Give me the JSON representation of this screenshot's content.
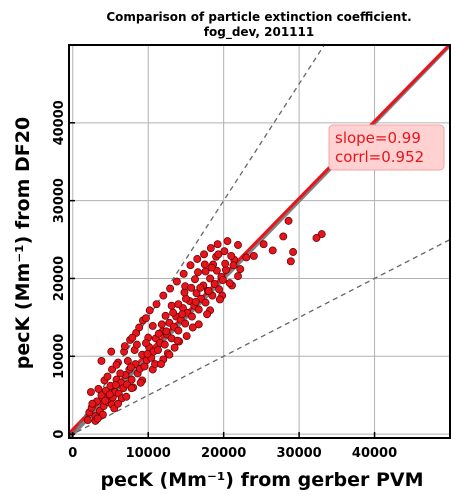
{
  "chart_data": {
    "type": "scatter",
    "title_lines": [
      "Comparison of particle extinction coefficient.",
      "fog_dev, 201111"
    ],
    "xlabel": "pecK (Mm⁻¹) from gerber PVM",
    "ylabel": "pecK (Mm⁻¹) from DF20",
    "xlim": [
      -500,
      50000
    ],
    "ylim": [
      -500,
      50000
    ],
    "grid": true,
    "x_ticks": [
      0,
      10000,
      20000,
      30000,
      40000
    ],
    "y_ticks": [
      0,
      10000,
      20000,
      30000,
      40000
    ],
    "x_tick_labels": [
      "0",
      "10000",
      "20000",
      "30000",
      "40000"
    ],
    "y_tick_labels": [
      "0",
      "10000",
      "20000",
      "30000",
      "40000"
    ],
    "annotation": {
      "lines": [
        "slope=0.99",
        "corrl=0.952"
      ],
      "placement": "upper-right"
    },
    "lines": [
      {
        "kind": "one-to-one",
        "slope": 1.0,
        "intercept": 0,
        "color": "#808080",
        "style": "solid"
      },
      {
        "kind": "fit",
        "slope": 0.99,
        "intercept": 600,
        "color": "#e8141c",
        "style": "solid"
      },
      {
        "kind": "bound-upper",
        "slope": 1.5,
        "intercept": 0,
        "color": "#666666",
        "style": "dashed"
      },
      {
        "kind": "bound-lower",
        "slope": 0.5,
        "intercept": 0,
        "color": "#666666",
        "style": "dashed"
      }
    ],
    "point_color": "#e8141c",
    "point_edge": "#5a0000",
    "series": [
      {
        "points": [
          [
            2200,
            2800
          ],
          [
            2500,
            3400
          ],
          [
            3000,
            2300
          ],
          [
            3200,
            4200
          ],
          [
            3600,
            3000
          ],
          [
            3800,
            5000
          ],
          [
            4100,
            3600
          ],
          [
            4400,
            5600
          ],
          [
            4700,
            4100
          ],
          [
            5000,
            6200
          ],
          [
            5300,
            4700
          ],
          [
            5600,
            5400
          ],
          [
            5800,
            7000
          ],
          [
            6100,
            5200
          ],
          [
            6400,
            6600
          ],
          [
            6700,
            5900
          ],
          [
            7000,
            7600
          ],
          [
            7200,
            6400
          ],
          [
            7500,
            8300
          ],
          [
            7800,
            7000
          ],
          [
            8000,
            6000
          ],
          [
            8300,
            9000
          ],
          [
            8600,
            7800
          ],
          [
            8900,
            8400
          ],
          [
            9200,
            10200
          ],
          [
            9500,
            8700
          ],
          [
            9800,
            9500
          ],
          [
            10100,
            11200
          ],
          [
            10400,
            9800
          ],
          [
            10700,
            10600
          ],
          [
            11000,
            12300
          ],
          [
            11300,
            10800
          ],
          [
            11600,
            11700
          ],
          [
            11900,
            13200
          ],
          [
            12200,
            11500
          ],
          [
            12500,
            12800
          ],
          [
            12800,
            14300
          ],
          [
            13100,
            12300
          ],
          [
            13400,
            13800
          ],
          [
            13700,
            15100
          ],
          [
            14000,
            13300
          ],
          [
            14300,
            14700
          ],
          [
            14600,
            16200
          ],
          [
            14900,
            14200
          ],
          [
            15200,
            15600
          ],
          [
            15500,
            17100
          ],
          [
            15800,
            15100
          ],
          [
            16100,
            16500
          ],
          [
            16400,
            18100
          ],
          [
            16700,
            16000
          ],
          [
            17000,
            17400
          ],
          [
            17300,
            19100
          ],
          [
            17600,
            16900
          ],
          [
            17900,
            18400
          ],
          [
            18200,
            20000
          ],
          [
            18500,
            17800
          ],
          [
            18800,
            19300
          ],
          [
            19100,
            21000
          ],
          [
            19400,
            18600
          ],
          [
            19700,
            20200
          ],
          [
            3400,
            5800
          ],
          [
            4200,
            6900
          ],
          [
            5200,
            8300
          ],
          [
            6000,
            9200
          ],
          [
            6800,
            10600
          ],
          [
            7600,
            12100
          ],
          [
            8400,
            13000
          ],
          [
            9300,
            14600
          ],
          [
            10200,
            15900
          ],
          [
            11100,
            16700
          ],
          [
            12000,
            17800
          ],
          [
            12900,
            18700
          ],
          [
            13800,
            19600
          ],
          [
            14700,
            20600
          ],
          [
            15600,
            21700
          ],
          [
            16500,
            22500
          ],
          [
            17400,
            23100
          ],
          [
            18300,
            23900
          ],
          [
            19200,
            24400
          ],
          [
            20100,
            23500
          ],
          [
            3000,
            1700
          ],
          [
            4000,
            2500
          ],
          [
            5200,
            3800
          ],
          [
            6500,
            4600
          ],
          [
            7800,
            5900
          ],
          [
            9200,
            6900
          ],
          [
            10600,
            8300
          ],
          [
            12000,
            9600
          ],
          [
            13500,
            11100
          ],
          [
            15100,
            12600
          ],
          [
            16700,
            14100
          ],
          [
            18200,
            15900
          ],
          [
            19800,
            17800
          ],
          [
            21100,
            19100
          ],
          [
            21900,
            20300
          ],
          [
            2600,
            3900
          ],
          [
            3300,
            2000
          ],
          [
            4900,
            5100
          ],
          [
            5500,
            3300
          ],
          [
            6300,
            7800
          ],
          [
            7100,
            4800
          ],
          [
            8200,
            10800
          ],
          [
            9000,
            6600
          ],
          [
            10000,
            12400
          ],
          [
            10900,
            9000
          ],
          [
            11800,
            14100
          ],
          [
            12600,
            10400
          ],
          [
            13300,
            15600
          ],
          [
            14100,
            11900
          ],
          [
            15000,
            17400
          ],
          [
            15900,
            13700
          ],
          [
            16900,
            18800
          ],
          [
            17800,
            15400
          ],
          [
            18600,
            21800
          ],
          [
            19500,
            17300
          ],
          [
            20300,
            21100
          ],
          [
            20800,
            19400
          ],
          [
            21400,
            22400
          ],
          [
            22200,
            21200
          ],
          [
            23000,
            22700
          ],
          [
            24000,
            22900
          ],
          [
            25300,
            24400
          ],
          [
            26500,
            23600
          ],
          [
            27900,
            25400
          ],
          [
            28600,
            27400
          ],
          [
            29200,
            23400
          ],
          [
            28900,
            22200
          ],
          [
            33000,
            25700
          ],
          [
            32300,
            25200
          ],
          [
            20500,
            24800
          ],
          [
            21900,
            24300
          ],
          [
            19000,
            22800
          ],
          [
            17600,
            20900
          ],
          [
            16200,
            19900
          ],
          [
            14800,
            18200
          ],
          [
            4600,
            7400
          ],
          [
            5800,
            8900
          ],
          [
            6900,
            11300
          ],
          [
            7900,
            12400
          ],
          [
            8800,
            13700
          ],
          [
            9700,
            14900
          ],
          [
            3800,
            9400
          ],
          [
            5100,
            10600
          ],
          [
            2000,
            1800
          ],
          [
            2400,
            5400
          ],
          [
            6000,
            3900
          ],
          [
            7300,
            9400
          ],
          [
            8500,
            11500
          ],
          [
            9700,
            11700
          ],
          [
            10600,
            13900
          ],
          [
            11400,
            12900
          ],
          [
            12300,
            15200
          ],
          [
            13100,
            16500
          ],
          [
            14000,
            16700
          ],
          [
            14900,
            19000
          ],
          [
            15700,
            18800
          ],
          [
            16600,
            20800
          ],
          [
            17500,
            21800
          ],
          [
            18400,
            21400
          ],
          [
            19300,
            23100
          ],
          [
            20200,
            21900
          ],
          [
            21000,
            22900
          ],
          [
            11700,
            9000
          ],
          [
            12800,
            10200
          ],
          [
            13900,
            12000
          ],
          [
            4300,
            4300
          ],
          [
            5700,
            6300
          ],
          [
            7700,
            8600
          ],
          [
            9900,
            10300
          ],
          [
            12400,
            13200
          ],
          [
            14500,
            15400
          ],
          [
            16300,
            17000
          ],
          [
            18000,
            18400
          ],
          [
            19900,
            19800
          ],
          [
            21300,
            21700
          ]
        ]
      }
    ]
  }
}
